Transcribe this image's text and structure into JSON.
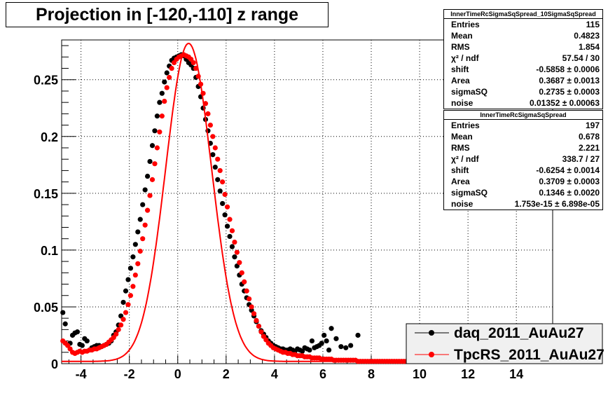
{
  "chart_data": {
    "type": "scatter",
    "title": "Projection in [-120,-110] z range",
    "xlim": [
      -4.8,
      15.5
    ],
    "ylim": [
      0,
      0.285
    ],
    "x_ticks": [
      -4,
      -2,
      0,
      2,
      4,
      6,
      8,
      10,
      12,
      14
    ],
    "x_tick_labels": [
      "-4",
      "-2",
      "0",
      "2",
      "4",
      "6",
      "8",
      "10",
      "12",
      "14"
    ],
    "y_ticks": [
      0,
      0.05,
      0.1,
      0.15,
      0.2,
      0.25
    ],
    "y_tick_labels": [
      "0",
      "0.05",
      "0.1",
      "0.15",
      "0.2",
      "0.25"
    ],
    "grid": true,
    "legend_position": "bottom-right",
    "series": [
      {
        "name": "daq_2011_AuAu27",
        "color": "#000000",
        "x": [
          -4.75,
          -4.65,
          -4.45,
          -4.35,
          -4.25,
          -4.15,
          -4.05,
          -3.95,
          -3.85,
          -3.75,
          -3.65,
          -3.55,
          -3.45,
          -3.35,
          -3.25,
          -3.15,
          -3.05,
          -2.95,
          -2.85,
          -2.75,
          -2.65,
          -2.55,
          -2.45,
          -2.35,
          -2.25,
          -2.15,
          -2.05,
          -1.95,
          -1.85,
          -1.75,
          -1.65,
          -1.55,
          -1.45,
          -1.35,
          -1.25,
          -1.15,
          -1.05,
          -0.95,
          -0.85,
          -0.75,
          -0.65,
          -0.55,
          -0.45,
          -0.35,
          -0.25,
          -0.15,
          -0.05,
          0.05,
          0.15,
          0.25,
          0.35,
          0.45,
          0.55,
          0.65,
          0.75,
          0.85,
          0.95,
          1.05,
          1.15,
          1.25,
          1.35,
          1.45,
          1.55,
          1.65,
          1.75,
          1.85,
          1.95,
          2.05,
          2.15,
          2.25,
          2.35,
          2.45,
          2.55,
          2.65,
          2.75,
          2.85,
          2.95,
          3.05,
          3.15,
          3.25,
          3.35,
          3.45,
          3.55,
          3.65,
          3.75,
          3.85,
          3.95,
          4.05,
          4.15,
          4.25,
          4.35,
          4.45,
          4.55,
          4.65,
          4.75,
          4.85,
          4.95,
          5.05,
          5.15,
          5.25,
          5.35,
          5.45,
          5.55,
          5.65,
          5.75,
          5.85,
          5.95,
          6.05,
          6.15,
          6.25,
          6.35,
          6.55,
          6.75,
          6.95,
          7.15,
          7.45
        ],
        "y": [
          0.045,
          0.035,
          0.018,
          0.025,
          0.027,
          0.028,
          0.017,
          0.016,
          0.022,
          0.02,
          0.012,
          0.014,
          0.015,
          0.016,
          0.016,
          0.015,
          0.016,
          0.017,
          0.018,
          0.02,
          0.025,
          0.028,
          0.034,
          0.042,
          0.054,
          0.064,
          0.074,
          0.084,
          0.094,
          0.105,
          0.116,
          0.127,
          0.14,
          0.153,
          0.165,
          0.178,
          0.192,
          0.205,
          0.218,
          0.23,
          0.238,
          0.248,
          0.256,
          0.262,
          0.267,
          0.269,
          0.27,
          0.271,
          0.272,
          0.271,
          0.268,
          0.265,
          0.263,
          0.26,
          0.252,
          0.244,
          0.235,
          0.225,
          0.215,
          0.205,
          0.194,
          0.184,
          0.173,
          0.162,
          0.152,
          0.141,
          0.131,
          0.121,
          0.112,
          0.103,
          0.094,
          0.086,
          0.078,
          0.07,
          0.064,
          0.058,
          0.052,
          0.047,
          0.042,
          0.037,
          0.033,
          0.029,
          0.026,
          0.023,
          0.02,
          0.018,
          0.016,
          0.015,
          0.014,
          0.013,
          0.013,
          0.012,
          0.012,
          0.013,
          0.012,
          0.011,
          0.013,
          0.012,
          0.011,
          0.014,
          0.013,
          0.012,
          0.02,
          0.014,
          0.015,
          0.016,
          0.018,
          0.025,
          0.02,
          0.012,
          0.031,
          0.022,
          0.015,
          0.014,
          0.016,
          0.025
        ]
      },
      {
        "name": "TpcRS_2011_AuAu27",
        "color": "#ff0000",
        "x": [
          -4.75,
          -4.65,
          -4.55,
          -4.45,
          -4.35,
          -4.25,
          -4.15,
          -4.05,
          -3.95,
          -3.85,
          -3.75,
          -3.65,
          -3.55,
          -3.45,
          -3.35,
          -3.25,
          -3.15,
          -3.05,
          -2.95,
          -2.85,
          -2.75,
          -2.65,
          -2.55,
          -2.45,
          -2.35,
          -2.25,
          -2.15,
          -2.05,
          -1.95,
          -1.85,
          -1.75,
          -1.65,
          -1.55,
          -1.45,
          -1.35,
          -1.25,
          -1.15,
          -1.05,
          -0.95,
          -0.85,
          -0.75,
          -0.65,
          -0.55,
          -0.45,
          -0.35,
          -0.25,
          -0.15,
          -0.05,
          0.05,
          0.15,
          0.25,
          0.35,
          0.45,
          0.55,
          0.65,
          0.75,
          0.85,
          0.95,
          1.05,
          1.15,
          1.25,
          1.35,
          1.45,
          1.55,
          1.65,
          1.75,
          1.85,
          1.95,
          2.05,
          2.15,
          2.25,
          2.35,
          2.45,
          2.55,
          2.65,
          2.75,
          2.85,
          2.95,
          3.05,
          3.15,
          3.25,
          3.35,
          3.45,
          3.55,
          3.65,
          3.75,
          3.85,
          3.95,
          4.05,
          4.15,
          4.25,
          4.35,
          4.45,
          4.55,
          4.65,
          4.75,
          4.85,
          4.95,
          5.05,
          5.15,
          5.25,
          5.35,
          5.45,
          5.55,
          5.65,
          5.75,
          5.85,
          5.95,
          6.05,
          6.15,
          6.25,
          6.35,
          6.45,
          6.55,
          6.65,
          6.75,
          6.85,
          6.95,
          7.05,
          7.15,
          7.25,
          7.35,
          7.45,
          7.55,
          7.65,
          7.75,
          7.85,
          7.95,
          8.05,
          8.15,
          8.25,
          8.35,
          8.45,
          8.55,
          8.65,
          8.75,
          8.85,
          8.95,
          9.05,
          9.15,
          9.25,
          9.35,
          9.45,
          9.55
        ],
        "y": [
          0.02,
          0.018,
          0.016,
          0.013,
          0.01,
          0.009,
          0.01,
          0.011,
          0.01,
          0.011,
          0.011,
          0.012,
          0.012,
          0.013,
          0.013,
          0.014,
          0.015,
          0.016,
          0.017,
          0.019,
          0.021,
          0.023,
          0.026,
          0.03,
          0.034,
          0.039,
          0.045,
          0.052,
          0.06,
          0.068,
          0.078,
          0.088,
          0.099,
          0.11,
          0.122,
          0.135,
          0.148,
          0.162,
          0.176,
          0.19,
          0.204,
          0.218,
          0.231,
          0.243,
          0.252,
          0.26,
          0.265,
          0.268,
          0.27,
          0.271,
          0.272,
          0.271,
          0.27,
          0.268,
          0.265,
          0.26,
          0.253,
          0.246,
          0.238,
          0.229,
          0.22,
          0.21,
          0.2,
          0.19,
          0.18,
          0.17,
          0.16,
          0.149,
          0.138,
          0.127,
          0.117,
          0.107,
          0.098,
          0.089,
          0.08,
          0.072,
          0.064,
          0.057,
          0.05,
          0.044,
          0.038,
          0.033,
          0.028,
          0.024,
          0.021,
          0.018,
          0.016,
          0.014,
          0.013,
          0.012,
          0.011,
          0.01,
          0.01,
          0.009,
          0.009,
          0.008,
          0.008,
          0.007,
          0.007,
          0.007,
          0.006,
          0.006,
          0.006,
          0.005,
          0.005,
          0.005,
          0.005,
          0.004,
          0.004,
          0.004,
          0.004,
          0.004,
          0.003,
          0.003,
          0.003,
          0.003,
          0.003,
          0.003,
          0.003,
          0.003,
          0.003,
          0.003,
          0.002,
          0.002,
          0.002,
          0.002,
          0.002,
          0.002,
          0.002,
          0.002,
          0.002,
          0.002,
          0.002,
          0.002,
          0.002,
          0.002,
          0.002,
          0.002,
          0.002,
          0.002,
          0.002,
          0.002,
          0.002,
          0.002
        ]
      }
    ],
    "fit_curve": {
      "name": "fit",
      "color": "#ff0000",
      "mean": 0.45,
      "sigma": 0.95,
      "peak": 0.282,
      "baseline": 0.002,
      "x_range": [
        -4.8,
        9.8
      ]
    }
  },
  "stats_boxes": [
    {
      "header": "InnerTimeRcSigmaSqSpread_10SigmaSqSpread",
      "rows": [
        {
          "label": "Entries",
          "value": "115"
        },
        {
          "label": "Mean",
          "value": "0.4823"
        },
        {
          "label": "RMS",
          "value": "1.854"
        },
        {
          "label": "χ² / ndf",
          "value": "57.54 / 30"
        },
        {
          "label": "shift",
          "value": "-0.5858 ± 0.0006"
        },
        {
          "label": "Area",
          "value": "0.3687 ± 0.0013"
        },
        {
          "label": "sigmaSQ",
          "value": "0.2735 ± 0.0003"
        },
        {
          "label": "noise",
          "value": "0.01352 ± 0.00063"
        }
      ]
    },
    {
      "header": "InnerTimeRcSigmaSqSpread",
      "rows": [
        {
          "label": "Entries",
          "value": "197"
        },
        {
          "label": "Mean",
          "value": "0.678"
        },
        {
          "label": "RMS",
          "value": "2.221"
        },
        {
          "label": "χ² / ndf",
          "value": "338.7 / 27"
        },
        {
          "label": "shift",
          "value": "-0.6254 ± 0.0014"
        },
        {
          "label": "Area",
          "value": "0.3709 ± 0.0003"
        },
        {
          "label": "sigmaSQ",
          "value": "0.1346 ± 0.0020"
        },
        {
          "label": "noise",
          "value": "1.753e-15 ± 6.898e-05"
        }
      ]
    }
  ]
}
